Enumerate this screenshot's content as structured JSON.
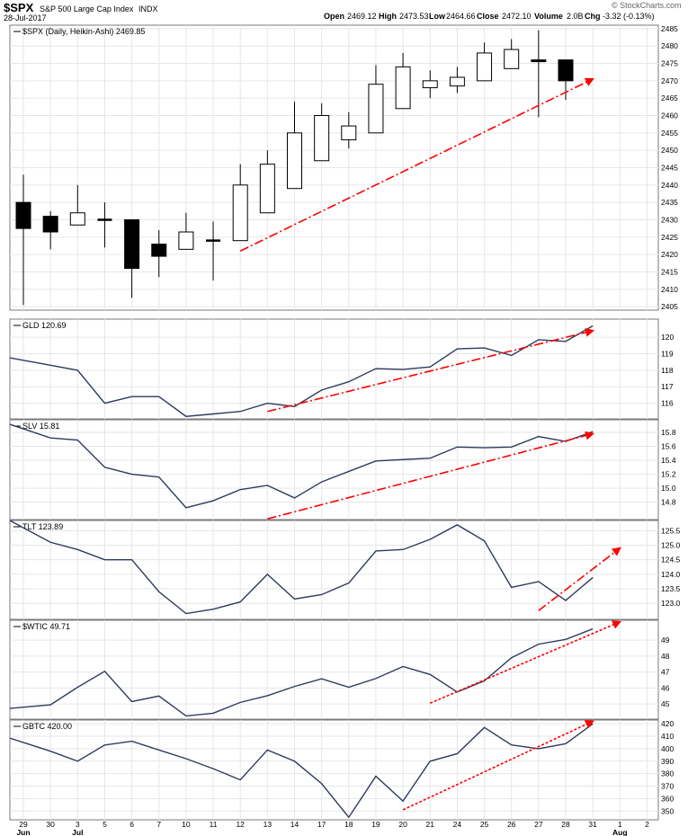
{
  "header": {
    "symbol": "$SPX",
    "name": "S&P 500 Large Cap Index",
    "exchange": "INDX",
    "date": "28-Jul-2017",
    "open_label": "Open",
    "open": "2469.12",
    "high_label": "High",
    "high": "2473.53",
    "low_label": "Low",
    "low": "2464.66",
    "close_label": "Close",
    "close": "2472.10",
    "volume_label": "Volume",
    "volume": "2.0B",
    "chg_label": "Chg",
    "chg": "-3.32 (-0.13%)",
    "brand": "© StockCharts.com"
  },
  "chart_data": [
    {
      "type": "candlestick",
      "legend": "$SPX (Daily, Heikin-Ashi) 2469.85",
      "ylim": [
        2404,
        2486
      ],
      "yticks": [
        2405,
        2410,
        2415,
        2420,
        2425,
        2430,
        2435,
        2440,
        2445,
        2450,
        2455,
        2460,
        2465,
        2470,
        2475,
        2480,
        2485
      ],
      "candles": [
        {
          "x": "29",
          "open": 2435,
          "close": 2427.5,
          "high": 2443,
          "low": 2405.5
        },
        {
          "x": "30",
          "open": 2431,
          "close": 2426.5,
          "high": 2432.5,
          "low": 2421.5
        },
        {
          "x": "3",
          "open": 2428.5,
          "close": 2432,
          "high": 2440,
          "low": 2428.5
        },
        {
          "x": "5",
          "open": 2430,
          "close": 2430,
          "high": 2435,
          "low": 2422
        },
        {
          "x": "6",
          "open": 2430,
          "close": 2416,
          "high": 2430,
          "low": 2407.5
        },
        {
          "x": "7",
          "open": 2423,
          "close": 2419.5,
          "high": 2427,
          "low": 2413.5
        },
        {
          "x": "10",
          "open": 2421.5,
          "close": 2426.5,
          "high": 2432,
          "low": 2421.5
        },
        {
          "x": "11",
          "open": 2424,
          "close": 2424,
          "high": 2429.5,
          "low": 2412.5
        },
        {
          "x": "12",
          "open": 2424,
          "close": 2440,
          "high": 2446,
          "low": 2424
        },
        {
          "x": "13",
          "open": 2432,
          "close": 2446,
          "high": 2450,
          "low": 2432
        },
        {
          "x": "14",
          "open": 2439,
          "close": 2455,
          "high": 2464,
          "low": 2439
        },
        {
          "x": "17",
          "open": 2447,
          "close": 2460,
          "high": 2463.5,
          "low": 2447
        },
        {
          "x": "18",
          "open": 2453,
          "close": 2457,
          "high": 2461,
          "low": 2450.5
        },
        {
          "x": "19",
          "open": 2455,
          "close": 2469,
          "high": 2474.5,
          "low": 2455
        },
        {
          "x": "20",
          "open": 2462,
          "close": 2474,
          "high": 2478,
          "low": 2462
        },
        {
          "x": "21",
          "open": 2468,
          "close": 2470,
          "high": 2473,
          "low": 2465
        },
        {
          "x": "24",
          "open": 2468.5,
          "close": 2471,
          "high": 2474,
          "low": 2466.5
        },
        {
          "x": "25",
          "open": 2470,
          "close": 2478,
          "high": 2481,
          "low": 2470
        },
        {
          "x": "26",
          "open": 2473.5,
          "close": 2479,
          "high": 2482,
          "low": 2473.5
        },
        {
          "x": "27",
          "open": 2476,
          "close": 2475.5,
          "high": 2484.5,
          "low": 2459.5
        },
        {
          "x": "28",
          "open": 2476,
          "close": 2470,
          "high": 2476,
          "low": 2464.5
        }
      ],
      "arrow": {
        "from": {
          "x": "12",
          "y": 2421
        },
        "to": {
          "x": "31",
          "y": 2470.5
        },
        "style": "dashdot"
      }
    },
    {
      "type": "line",
      "legend": "GLD 120.69",
      "ylim": [
        115.05,
        121.1
      ],
      "yticks": [
        116,
        117,
        118,
        119,
        120
      ],
      "series": [
        {
          "values": [
            118.6,
            118.3,
            118.0,
            116.0,
            116.4,
            116.4,
            115.2,
            115.35,
            115.5,
            116.0,
            115.8,
            116.8,
            117.3,
            118.1,
            118.05,
            118.2,
            119.3,
            119.35,
            118.9,
            119.85,
            119.75,
            120.69
          ]
        }
      ],
      "arrow": {
        "from": {
          "x": "13",
          "y": 115.5
        },
        "to": {
          "x": "31",
          "y": 120.4
        },
        "style": "dashdot"
      }
    },
    {
      "type": "line",
      "legend": "SLV 15.81",
      "ylim": [
        14.55,
        15.98
      ],
      "yticks": [
        14.8,
        15.0,
        15.2,
        15.4,
        15.6,
        15.8
      ],
      "series": [
        {
          "values": [
            15.85,
            15.72,
            15.69,
            15.3,
            15.2,
            15.16,
            14.72,
            14.82,
            14.98,
            15.04,
            14.86,
            15.09,
            15.24,
            15.39,
            15.41,
            15.43,
            15.59,
            15.58,
            15.59,
            15.74,
            15.67,
            15.81
          ]
        }
      ],
      "arrow": {
        "from": {
          "x": "13",
          "y": 14.56
        },
        "to": {
          "x": "31",
          "y": 15.78
        },
        "style": "dashdot"
      }
    },
    {
      "type": "line",
      "legend": "TLT 123.89",
      "ylim": [
        122.45,
        125.85
      ],
      "yticks": [
        123.0,
        123.5,
        124.0,
        124.5,
        125.0,
        125.5
      ],
      "series": [
        {
          "values": [
            125.6,
            125.1,
            124.85,
            124.5,
            124.5,
            123.4,
            122.65,
            122.8,
            123.05,
            124.0,
            123.15,
            123.3,
            123.7,
            124.8,
            124.85,
            125.2,
            125.7,
            125.15,
            123.55,
            123.75,
            123.1,
            123.89
          ]
        }
      ],
      "arrow": {
        "from": {
          "x": "27",
          "y": 122.75
        },
        "to": {
          "x": "1",
          "y": 124.9
        },
        "style": "dashdot"
      }
    },
    {
      "type": "line",
      "legend": "$WTIC 49.71",
      "ylim": [
        44.05,
        50.25
      ],
      "yticks": [
        45,
        46,
        47,
        48,
        49
      ],
      "series": [
        {
          "values": [
            44.8,
            44.95,
            46.05,
            47.05,
            45.15,
            45.5,
            44.25,
            44.42,
            45.1,
            45.52,
            46.1,
            46.58,
            46.05,
            46.6,
            47.35,
            46.85,
            45.75,
            46.45,
            47.9,
            48.75,
            49.05,
            49.71
          ]
        }
      ],
      "arrow": {
        "from": {
          "x": "21",
          "y": 45.05
        },
        "to": {
          "x": "1",
          "y": 50.15
        },
        "style": "dotted"
      }
    },
    {
      "type": "line",
      "legend": "GBTC 420.00",
      "ylim": [
        343,
        423
      ],
      "yticks": [
        350,
        360,
        370,
        380,
        390,
        400,
        410,
        420
      ],
      "series": [
        {
          "values": [
            405,
            398,
            390,
            403,
            406,
            399,
            392,
            384,
            375,
            399,
            390,
            372,
            345,
            378,
            358,
            390,
            396,
            417,
            403,
            400,
            404,
            420
          ]
        }
      ],
      "arrow": {
        "from": {
          "x": "20",
          "y": 351
        },
        "to": {
          "x": "31",
          "y": 422
        },
        "style": "dotted"
      }
    }
  ],
  "x_axis": {
    "labels": [
      "29",
      "30",
      "3",
      "5",
      "6",
      "7",
      "10",
      "11",
      "12",
      "13",
      "14",
      "17",
      "18",
      "19",
      "20",
      "21",
      "24",
      "25",
      "26",
      "27",
      "28",
      "31",
      "1",
      "2"
    ],
    "months": [
      {
        "at": "29",
        "label": "Jun"
      },
      {
        "at": "3",
        "label": "Jul"
      },
      {
        "at": "1",
        "label": "Aug"
      }
    ]
  },
  "colors": {
    "line": "#2e3b5e",
    "arrow": "#ff0000",
    "grid": "#e6e6e6",
    "frame": "#7a7a7a",
    "candle": "#000000"
  }
}
